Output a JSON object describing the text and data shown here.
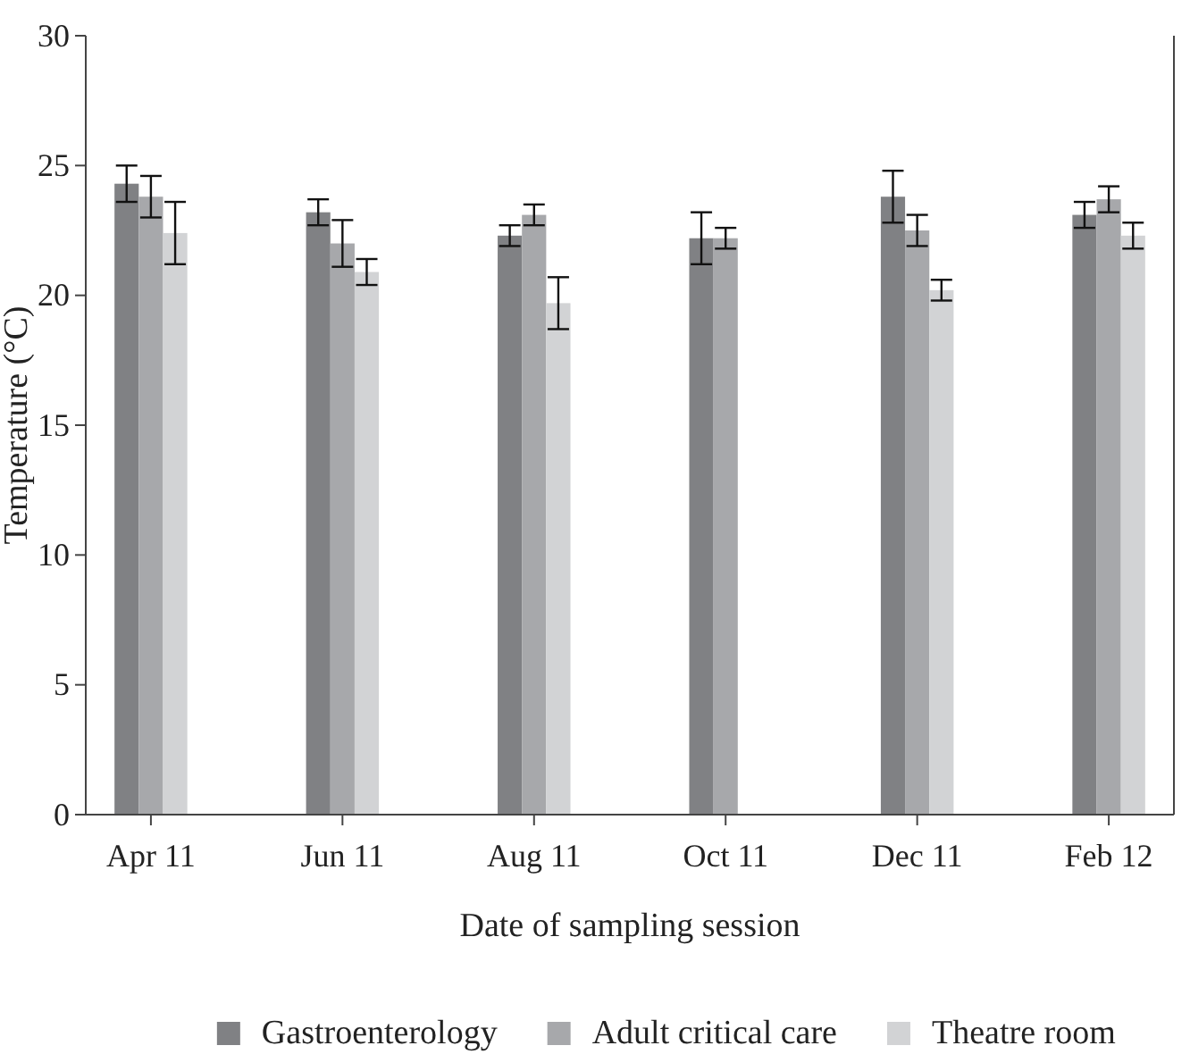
{
  "chart_data": {
    "type": "bar",
    "xlabel": "Date of sampling session",
    "ylabel": "Temperature (°C)",
    "categories": [
      "Apr 11",
      "Jun 11",
      "Aug 11",
      "Oct 11",
      "Dec 11",
      "Feb 12"
    ],
    "series": [
      {
        "name": "Gastroenterology",
        "color": "#808184",
        "values": [
          24.3,
          23.2,
          22.3,
          22.2,
          23.8,
          23.1
        ],
        "errors": [
          0.7,
          0.5,
          0.4,
          1.0,
          1.0,
          0.5
        ]
      },
      {
        "name": "Adult critical care",
        "color": "#a7a8ab",
        "values": [
          23.8,
          22.0,
          23.1,
          22.2,
          22.5,
          23.7
        ],
        "errors": [
          0.8,
          0.9,
          0.4,
          0.4,
          0.6,
          0.5
        ]
      },
      {
        "name": "Theatre room",
        "color": "#d2d3d5",
        "values": [
          22.4,
          20.9,
          19.7,
          null,
          20.2,
          22.3
        ],
        "errors": [
          1.2,
          0.5,
          1.0,
          null,
          0.4,
          0.5
        ]
      }
    ],
    "ylim": [
      0,
      30
    ],
    "yticks": [
      0,
      5,
      10,
      15,
      20,
      25,
      30
    ],
    "grid": false,
    "legend": "bottom"
  }
}
